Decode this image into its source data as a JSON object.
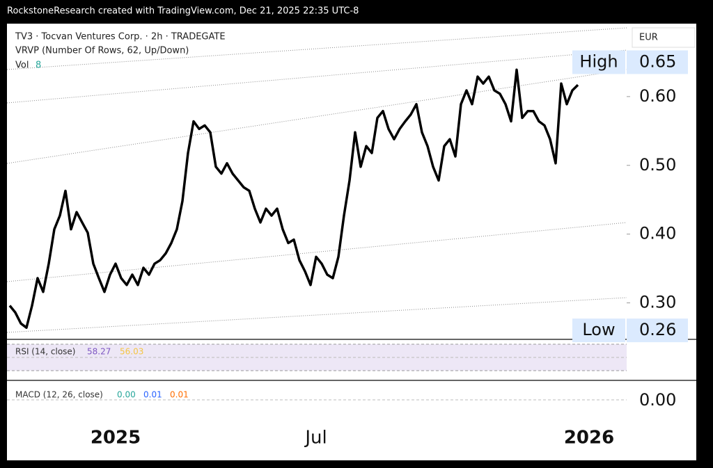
{
  "header": "RockstoneResearch created with TradingView.com, Dec 21, 2025 22:35 UTC-8",
  "chart_data": {
    "type": "line",
    "title": "TV3 · Tocvan Ventures Corp. · 2h · TRADEGATE",
    "subtitle": "VRVP (Number Of Rows, 62, Up/Down)",
    "volume_label": "Vol",
    "volume_value": "8",
    "currency": "EUR",
    "color": "#000000",
    "categories": [
      null,
      null,
      null,
      null,
      null,
      null,
      null,
      null,
      null,
      null,
      null,
      null,
      null,
      null,
      null,
      null,
      null,
      null,
      null,
      "2025",
      null,
      null,
      null,
      null,
      null,
      null,
      null,
      null,
      null,
      null,
      null,
      null,
      null,
      null,
      null,
      null,
      null,
      null,
      null,
      null,
      null,
      null,
      null,
      null,
      null,
      null,
      null,
      null,
      null,
      null,
      null,
      null,
      null,
      null,
      null,
      "Jul",
      null,
      null,
      null,
      null,
      null,
      null,
      null,
      null,
      null,
      null,
      null,
      null,
      null,
      null,
      null,
      null,
      null,
      null,
      null,
      null,
      null,
      null,
      null,
      null,
      null,
      null,
      null,
      null,
      null,
      null,
      null,
      null,
      null,
      null,
      null,
      null,
      null,
      null,
      null,
      null,
      null,
      null,
      null,
      null,
      null,
      null,
      null,
      null,
      "2026",
      null,
      null,
      null,
      null,
      null,
      null
    ],
    "values": [
      0.296,
      0.286,
      0.27,
      0.264,
      0.296,
      0.336,
      0.316,
      0.357,
      0.407,
      0.427,
      0.463,
      0.407,
      0.432,
      0.417,
      0.402,
      0.357,
      0.336,
      0.316,
      0.341,
      0.357,
      0.336,
      0.326,
      0.341,
      0.326,
      0.351,
      0.341,
      0.357,
      0.362,
      0.372,
      0.387,
      0.407,
      0.448,
      0.518,
      0.564,
      0.553,
      0.558,
      0.548,
      0.498,
      0.488,
      0.503,
      0.488,
      0.478,
      0.468,
      0.463,
      0.437,
      0.417,
      0.437,
      0.427,
      0.437,
      0.407,
      0.387,
      0.392,
      0.362,
      0.346,
      0.326,
      0.367,
      0.357,
      0.341,
      0.336,
      0.367,
      0.427,
      0.478,
      0.548,
      0.498,
      0.528,
      0.518,
      0.569,
      0.579,
      0.553,
      0.538,
      0.553,
      0.564,
      0.574,
      0.589,
      0.548,
      0.528,
      0.498,
      0.478,
      0.528,
      0.538,
      0.513,
      0.589,
      0.609,
      0.589,
      0.629,
      0.619,
      0.629,
      0.609,
      0.604,
      0.589,
      0.564,
      0.639,
      0.569,
      0.579,
      0.579,
      0.564,
      0.558,
      0.538,
      0.503,
      0.619,
      0.589,
      0.609,
      0.617,
      null,
      null,
      null,
      null,
      null,
      null,
      null,
      null
    ],
    "ylim": [
      0.25,
      0.7
    ],
    "yticks": [
      {
        "value": 0.3,
        "label": "0.30"
      },
      {
        "value": 0.4,
        "label": "0.40"
      },
      {
        "value": 0.5,
        "label": "0.50"
      },
      {
        "value": 0.6,
        "label": "0.60"
      }
    ],
    "markers": [
      {
        "label": "High",
        "value": 0.65,
        "value_label": "0.65"
      },
      {
        "label": "Low",
        "value": 0.26,
        "value_label": "0.26"
      }
    ],
    "rsi": {
      "label": "RSI (14, close)",
      "values": [
        "58.27",
        "56.03"
      ]
    },
    "macd": {
      "label": "MACD (12, 26, close)",
      "values": [
        "0.00",
        "0.01",
        "0.01"
      ],
      "axis_tick": {
        "value": 0,
        "label": "0.00"
      }
    }
  }
}
